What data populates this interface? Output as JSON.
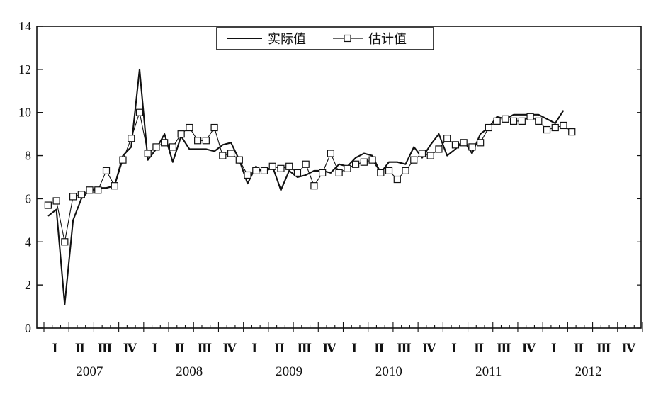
{
  "chart_data": {
    "type": "line",
    "grid": false,
    "legend_position": "top-center",
    "ylim": [
      0,
      14
    ],
    "yticks": [
      0,
      2,
      4,
      6,
      8,
      10,
      12,
      14
    ],
    "years": [
      "2007",
      "2008",
      "2009",
      "2010",
      "2011",
      "2012"
    ],
    "quarters": [
      "Ⅰ",
      "Ⅱ",
      "Ⅲ",
      "Ⅳ"
    ],
    "months_per_quarter": 3,
    "series": [
      {
        "name": "实际值",
        "marker": "none",
        "color": "#111111",
        "values": [
          5.2,
          5.5,
          1.1,
          5.0,
          6.0,
          6.4,
          6.5,
          6.5,
          6.6,
          8.0,
          8.4,
          12.0,
          7.8,
          8.3,
          9.0,
          7.7,
          8.9,
          8.3,
          8.3,
          8.3,
          8.2,
          8.5,
          8.6,
          7.8,
          6.7,
          7.5,
          7.2,
          7.5,
          6.4,
          7.3,
          7.0,
          7.1,
          7.3,
          7.3,
          7.2,
          7.6,
          7.5,
          7.9,
          8.1,
          8.0,
          7.2,
          7.7,
          7.7,
          7.6,
          8.4,
          7.9,
          8.5,
          9.0,
          8.0,
          8.3,
          8.7,
          8.1,
          9.0,
          9.3,
          9.8,
          9.7,
          9.9,
          9.9,
          9.9,
          9.9,
          9.7,
          9.5,
          10.1
        ],
        "start_month_index": 0
      },
      {
        "name": "估计值",
        "marker": "square",
        "color": "#111111",
        "values": [
          5.7,
          5.9,
          4.0,
          6.1,
          6.2,
          6.4,
          6.4,
          7.3,
          6.6,
          7.8,
          8.8,
          10.0,
          8.1,
          8.4,
          8.6,
          8.4,
          9.0,
          9.3,
          8.7,
          8.7,
          9.3,
          8.0,
          8.1,
          7.8,
          7.1,
          7.3,
          7.3,
          7.5,
          7.4,
          7.5,
          7.2,
          7.6,
          6.6,
          7.2,
          8.1,
          7.2,
          7.4,
          7.6,
          7.7,
          7.8,
          7.2,
          7.3,
          6.9,
          7.3,
          7.8,
          8.1,
          8.0,
          8.3,
          8.8,
          8.5,
          8.6,
          8.4,
          8.6,
          9.3,
          9.6,
          9.7,
          9.6,
          9.6,
          9.8,
          9.6,
          9.2,
          9.3,
          9.4,
          9.1
        ],
        "start_month_index": 0
      }
    ]
  }
}
